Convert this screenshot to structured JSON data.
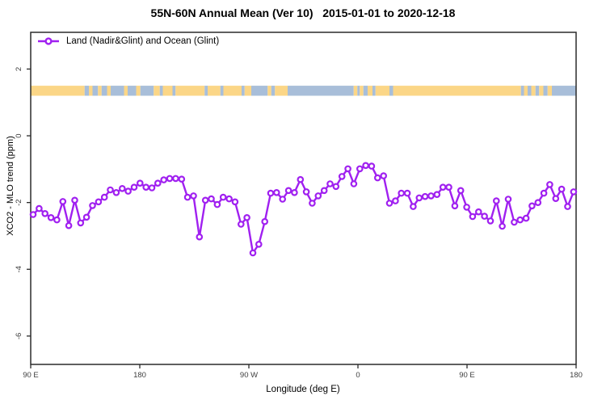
{
  "title": "55N-60N Annual Mean (Ver 10)   2015-01-01 to 2020-12-18",
  "legend": {
    "label": "Land (Nadir&Glint) and Ocean (Glint)"
  },
  "colors": {
    "series": "#A020F0",
    "marker_fill": "#ffffff",
    "land": "#FBD687",
    "ocean": "#A8BED9",
    "axis": "#2b2b2b",
    "tick_text": "#404040"
  },
  "x_axis": {
    "title": "Longitude (deg E)",
    "range": [
      90,
      540
    ],
    "tick_values": [
      90,
      180,
      270,
      360,
      450,
      540
    ],
    "tick_labels": [
      "90 E",
      "180",
      "90 W",
      "0",
      "90 E",
      "180"
    ]
  },
  "y_axis": {
    "title": "XCO2 - MLO trend (ppm)",
    "range": [
      -6.85,
      3.1
    ],
    "tick_values": [
      2,
      0,
      -2,
      -4,
      -6
    ],
    "tick_labels": [
      "2",
      "0",
      "-2",
      "-4",
      "-6"
    ]
  },
  "chart_data": {
    "type": "line",
    "title": "55N-60N Annual Mean (Ver 10)   2015-01-01 to 2020-12-18",
    "xlabel": "Longitude (deg E)",
    "ylabel": "XCO2 - MLO trend (ppm)",
    "xlim": [
      90,
      540
    ],
    "ylim": [
      -6.85,
      3.1
    ],
    "grid": false,
    "legend_position": "top-left-inside",
    "series": [
      {
        "name": "Land (Nadir&Glint) and Ocean (Glint)",
        "marker": "open-circle",
        "lon_start": 92,
        "lon_step": 4.9,
        "values": [
          -2.36,
          -2.18,
          -2.33,
          -2.45,
          -2.52,
          -1.97,
          -2.69,
          -1.93,
          -2.61,
          -2.44,
          -2.09,
          -1.98,
          -1.84,
          -1.62,
          -1.7,
          -1.58,
          -1.66,
          -1.54,
          -1.42,
          -1.54,
          -1.56,
          -1.42,
          -1.32,
          -1.28,
          -1.28,
          -1.3,
          -1.84,
          -1.8,
          -3.03,
          -1.93,
          -1.89,
          -2.06,
          -1.84,
          -1.89,
          -1.98,
          -2.65,
          -2.45,
          -3.51,
          -3.25,
          -2.57,
          -1.72,
          -1.7,
          -1.9,
          -1.64,
          -1.7,
          -1.31,
          -1.68,
          -2.02,
          -1.8,
          -1.64,
          -1.44,
          -1.52,
          -1.22,
          -0.99,
          -1.44,
          -0.99,
          -0.89,
          -0.91,
          -1.26,
          -1.2,
          -2.02,
          -1.95,
          -1.72,
          -1.72,
          -2.12,
          -1.86,
          -1.82,
          -1.8,
          -1.76,
          -1.54,
          -1.54,
          -2.1,
          -1.64,
          -2.14,
          -2.42,
          -2.28,
          -2.41,
          -2.55,
          -1.95,
          -2.71,
          -1.9,
          -2.59,
          -2.52,
          -2.47,
          -2.1,
          -2.0,
          -1.72,
          -1.46,
          -1.88,
          -1.6,
          -2.12,
          -1.68
        ]
      }
    ],
    "map_band": {
      "description": "land/ocean strip for 55N-60N latitude belt",
      "value_top": 1.5,
      "value_bottom": 1.2,
      "segments": [
        [
          90,
          134.5,
          "land"
        ],
        [
          134.5,
          138,
          "ocean"
        ],
        [
          138,
          141,
          "land"
        ],
        [
          141,
          145.5,
          "ocean"
        ],
        [
          145.5,
          148.5,
          "land"
        ],
        [
          148.5,
          153,
          "ocean"
        ],
        [
          153,
          156,
          "land"
        ],
        [
          156,
          167,
          "ocean"
        ],
        [
          167,
          170,
          "land"
        ],
        [
          170,
          177,
          "ocean"
        ],
        [
          177,
          180.5,
          "land"
        ],
        [
          180.5,
          191.5,
          "ocean"
        ],
        [
          191.5,
          196.5,
          "land"
        ],
        [
          196.5,
          199,
          "ocean"
        ],
        [
          199,
          207,
          "land"
        ],
        [
          207,
          209.5,
          "ocean"
        ],
        [
          209.5,
          233.5,
          "land"
        ],
        [
          233.5,
          236,
          "ocean"
        ],
        [
          236,
          246.5,
          "land"
        ],
        [
          246.5,
          249,
          "ocean"
        ],
        [
          249,
          264,
          "land"
        ],
        [
          264,
          266.5,
          "ocean"
        ],
        [
          266.5,
          272,
          "land"
        ],
        [
          272,
          285.5,
          "ocean"
        ],
        [
          285.5,
          288.5,
          "land"
        ],
        [
          288.5,
          291.5,
          "ocean"
        ],
        [
          291.5,
          302,
          "land"
        ],
        [
          302,
          356.5,
          "ocean"
        ],
        [
          356.5,
          359.5,
          "land"
        ],
        [
          359.5,
          361.5,
          "ocean"
        ],
        [
          361.5,
          364.5,
          "land"
        ],
        [
          364.5,
          368,
          "ocean"
        ],
        [
          368,
          372,
          "land"
        ],
        [
          372,
          374.5,
          "ocean"
        ],
        [
          374.5,
          386,
          "land"
        ],
        [
          386,
          389,
          "ocean"
        ],
        [
          389,
          494.5,
          "land"
        ],
        [
          494.5,
          497,
          "ocean"
        ],
        [
          497,
          500,
          "land"
        ],
        [
          500,
          503,
          "ocean"
        ],
        [
          503,
          506.5,
          "land"
        ],
        [
          506.5,
          509.5,
          "ocean"
        ],
        [
          509.5,
          513,
          "land"
        ],
        [
          513,
          516.5,
          "ocean"
        ],
        [
          516.5,
          520,
          "land"
        ],
        [
          520,
          540,
          "ocean"
        ]
      ]
    }
  }
}
